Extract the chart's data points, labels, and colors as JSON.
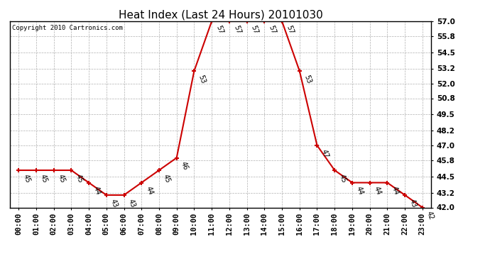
{
  "title": "Heat Index (Last 24 Hours) 20101030",
  "copyright": "Copyright 2010 Cartronics.com",
  "hours": [
    "00:00",
    "01:00",
    "02:00",
    "03:00",
    "04:00",
    "05:00",
    "06:00",
    "07:00",
    "08:00",
    "09:00",
    "10:00",
    "11:00",
    "12:00",
    "13:00",
    "14:00",
    "15:00",
    "16:00",
    "17:00",
    "18:00",
    "19:00",
    "20:00",
    "21:00",
    "22:00",
    "23:00"
  ],
  "values": [
    45,
    45,
    45,
    45,
    44,
    43,
    43,
    44,
    45,
    46,
    53,
    57,
    57,
    57,
    57,
    57,
    53,
    47,
    45,
    44,
    44,
    44,
    43,
    42
  ],
  "line_color": "#cc0000",
  "marker": "+",
  "marker_color": "#cc0000",
  "bg_color": "#ffffff",
  "grid_color": "#b0b0b0",
  "ylim_min": 42.0,
  "ylim_max": 57.0,
  "yticks": [
    42.0,
    43.2,
    44.5,
    45.8,
    47.0,
    48.2,
    49.5,
    50.8,
    52.0,
    53.2,
    54.5,
    55.8,
    57.0
  ],
  "title_fontsize": 11,
  "label_fontsize": 7,
  "tick_fontsize": 7.5,
  "copyright_fontsize": 6.5,
  "label_rotation": -70
}
